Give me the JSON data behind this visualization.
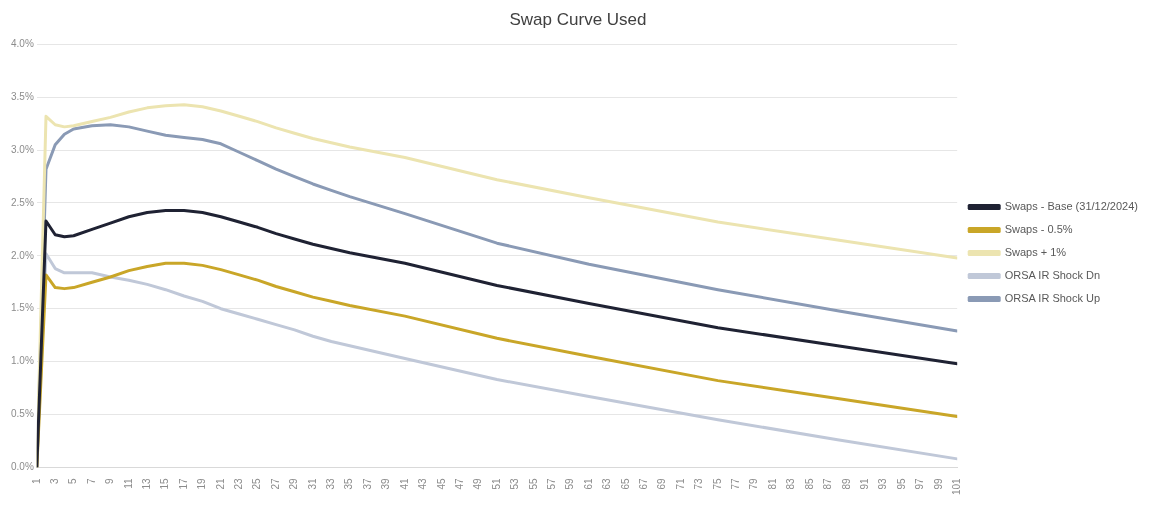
{
  "chart_data": {
    "type": "line",
    "title": "Swap Curve Used",
    "legend": "right",
    "grid": "y",
    "marker": "none",
    "line_style": "solid",
    "x": [
      1,
      2,
      3,
      4,
      5,
      7,
      9,
      11,
      13,
      15,
      17,
      19,
      21,
      23,
      25,
      27,
      29,
      31,
      33,
      35,
      41,
      51,
      61,
      75,
      88,
      101
    ],
    "xlim": [
      1,
      101
    ],
    "xticks": [
      1,
      3,
      5,
      7,
      9,
      11,
      13,
      15,
      17,
      19,
      21,
      23,
      25,
      27,
      29,
      31,
      33,
      35,
      37,
      39,
      41,
      43,
      45,
      47,
      49,
      51,
      53,
      55,
      57,
      59,
      61,
      63,
      65,
      67,
      69,
      71,
      73,
      75,
      77,
      79,
      81,
      83,
      85,
      87,
      89,
      91,
      93,
      95,
      97,
      99,
      101
    ],
    "ylim": [
      0,
      4
    ],
    "yticks": [
      {
        "value": 0,
        "label": "0.0%"
      },
      {
        "value": 0.5,
        "label": "0.5%"
      },
      {
        "value": 1,
        "label": "1.0%"
      },
      {
        "value": 1.5,
        "label": "1.5%"
      },
      {
        "value": 2,
        "label": "2.0%"
      },
      {
        "value": 2.5,
        "label": "2.5%"
      },
      {
        "value": 3,
        "label": "3.0%"
      },
      {
        "value": 3.5,
        "label": "3.5%"
      },
      {
        "value": 4,
        "label": "4.0%"
      }
    ],
    "series": [
      {
        "name": "Swaps - Base (31/12/2024)",
        "color": "#1f2233",
        "values": [
          0,
          2.33,
          2.2,
          2.18,
          2.19,
          2.25,
          2.31,
          2.37,
          2.41,
          2.43,
          2.43,
          2.41,
          2.37,
          2.32,
          2.27,
          2.21,
          2.16,
          2.11,
          2.07,
          2.03,
          1.93,
          1.72,
          1.55,
          1.32,
          1.15,
          0.98
        ]
      },
      {
        "name": "Swaps - 0.5%",
        "color": "#c9a628",
        "values": [
          0,
          1.82,
          1.7,
          1.69,
          1.7,
          1.75,
          1.8,
          1.86,
          1.9,
          1.93,
          1.93,
          1.91,
          1.87,
          1.82,
          1.77,
          1.71,
          1.66,
          1.61,
          1.57,
          1.53,
          1.43,
          1.22,
          1.05,
          0.82,
          0.65,
          0.48
        ]
      },
      {
        "name": "Swaps + 1%",
        "color": "#ece4b0",
        "values": [
          0,
          3.32,
          3.24,
          3.22,
          3.23,
          3.27,
          3.31,
          3.36,
          3.4,
          3.42,
          3.43,
          3.41,
          3.37,
          3.32,
          3.27,
          3.21,
          3.16,
          3.11,
          3.07,
          3.03,
          2.93,
          2.72,
          2.55,
          2.32,
          2.15,
          1.98
        ]
      },
      {
        "name": "ORSA IR Shock Dn",
        "color": "#c0c8d8",
        "values": [
          0,
          2.02,
          1.88,
          1.84,
          1.84,
          1.84,
          1.8,
          1.77,
          1.73,
          1.68,
          1.62,
          1.57,
          1.5,
          1.45,
          1.4,
          1.35,
          1.3,
          1.24,
          1.19,
          1.15,
          1.03,
          0.83,
          0.67,
          0.45,
          0.26,
          0.08
        ]
      },
      {
        "name": "ORSA IR Shock Up",
        "color": "#8a9ab5",
        "values": [
          0,
          2.82,
          3.05,
          3.15,
          3.2,
          3.23,
          3.24,
          3.22,
          3.18,
          3.14,
          3.12,
          3.1,
          3.06,
          2.98,
          2.9,
          2.82,
          2.75,
          2.68,
          2.62,
          2.56,
          2.4,
          2.12,
          1.92,
          1.68,
          1.48,
          1.29
        ]
      }
    ]
  }
}
